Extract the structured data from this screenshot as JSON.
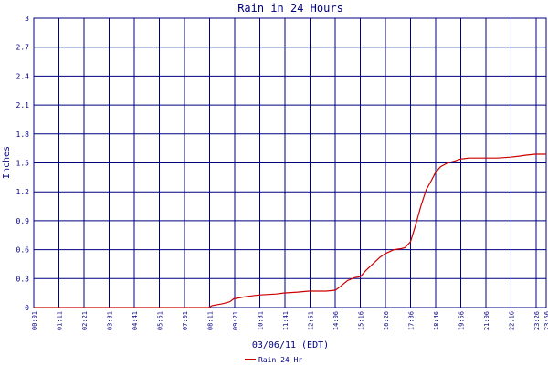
{
  "chart_data": {
    "type": "line",
    "title": "Rain in 24 Hours",
    "ylabel": "Inches",
    "xlabel": "03/06/11 (EDT)",
    "ylim": [
      0,
      3
    ],
    "grid": true,
    "legend_position": "bottom-left",
    "y_ticks": [
      "0",
      "0.3",
      "0.6",
      "0.9",
      "1.2",
      "1.5",
      "1.8",
      "2.1",
      "2.4",
      "2.7",
      "3"
    ],
    "x_ticks": [
      "00:01",
      "01:11",
      "02:21",
      "03:31",
      "04:41",
      "05:51",
      "07:01",
      "08:11",
      "09:21",
      "10:31",
      "11:41",
      "12:51",
      "14:06",
      "15:16",
      "16:26",
      "17:36",
      "18:46",
      "19:56",
      "21:06",
      "22:16",
      "23:26",
      "23:56"
    ],
    "colors": {
      "grid": "#000080",
      "text": "#000080",
      "series": "#cc0000"
    },
    "series": [
      {
        "name": "Rain 24 Hr",
        "x": [
          "00:01",
          "08:11",
          "08:20",
          "08:50",
          "09:10",
          "09:21",
          "09:50",
          "10:10",
          "10:31",
          "11:20",
          "11:41",
          "12:20",
          "12:51",
          "13:40",
          "14:06",
          "14:20",
          "14:40",
          "15:00",
          "15:16",
          "15:30",
          "15:50",
          "16:10",
          "16:26",
          "16:50",
          "17:10",
          "17:20",
          "17:36",
          "17:50",
          "18:05",
          "18:20",
          "18:35",
          "18:46",
          "19:00",
          "19:20",
          "19:40",
          "19:56",
          "20:20",
          "21:06",
          "21:40",
          "22:16",
          "22:40",
          "23:00",
          "23:26",
          "23:56"
        ],
        "y": [
          0.0,
          0.0,
          0.02,
          0.04,
          0.06,
          0.09,
          0.11,
          0.12,
          0.13,
          0.14,
          0.15,
          0.16,
          0.17,
          0.17,
          0.18,
          0.22,
          0.28,
          0.31,
          0.32,
          0.38,
          0.45,
          0.52,
          0.56,
          0.6,
          0.61,
          0.62,
          0.68,
          0.85,
          1.05,
          1.22,
          1.32,
          1.4,
          1.46,
          1.5,
          1.52,
          1.54,
          1.55,
          1.55,
          1.55,
          1.56,
          1.57,
          1.58,
          1.59,
          1.59
        ]
      }
    ]
  }
}
